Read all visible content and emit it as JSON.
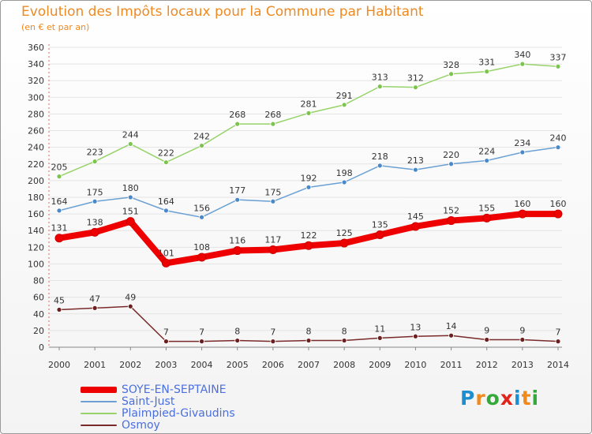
{
  "header": {
    "title": "Evolution des Impôts locaux pour la Commune par Habitant",
    "subtitle": "(en € et par an)"
  },
  "logo": {
    "text": "Proxiti",
    "colors": [
      "#1d8fd1",
      "#f08a1c",
      "#35a83a",
      "#e2231a",
      "#1d8fd1",
      "#f08a1c",
      "#35a83a"
    ]
  },
  "chart_data": {
    "type": "line",
    "x": [
      2000,
      2001,
      2002,
      2003,
      2004,
      2005,
      2006,
      2007,
      2008,
      2009,
      2010,
      2011,
      2012,
      2013,
      2014
    ],
    "ylim": [
      0,
      360
    ],
    "yticks": [
      0,
      20,
      40,
      60,
      80,
      100,
      120,
      140,
      160,
      180,
      200,
      220,
      240,
      260,
      280,
      300,
      320,
      340,
      360
    ],
    "grid": true,
    "legend_position": "bottom-left",
    "series": [
      {
        "name": "Plaimpied-Givaudins",
        "color": "#97d36a",
        "marker": "#7dc44f",
        "values": [
          205,
          223,
          244,
          222,
          242,
          268,
          268,
          281,
          291,
          313,
          312,
          328,
          331,
          340,
          337
        ]
      },
      {
        "name": "Saint-Just",
        "color": "#6aa0d3",
        "marker": "#4a88c8",
        "values": [
          164,
          175,
          180,
          164,
          156,
          177,
          175,
          192,
          198,
          218,
          213,
          220,
          224,
          234,
          240
        ]
      },
      {
        "name": "Osmoy",
        "color": "#7a2a2a",
        "marker": "#6b1f1f",
        "values": [
          45,
          47,
          49,
          7,
          7,
          8,
          7,
          8,
          8,
          11,
          13,
          14,
          9,
          9,
          7
        ]
      },
      {
        "name": "SOYE-EN-SEPTAINE",
        "color": "#ee0000",
        "marker": "#ee0000",
        "values": [
          131,
          138,
          151,
          101,
          108,
          116,
          117,
          122,
          125,
          135,
          145,
          152,
          155,
          160,
          160
        ]
      }
    ],
    "legend": [
      "SOYE-EN-SEPTAINE",
      "Saint-Just",
      "Plaimpied-Givaudins",
      "Osmoy"
    ]
  }
}
